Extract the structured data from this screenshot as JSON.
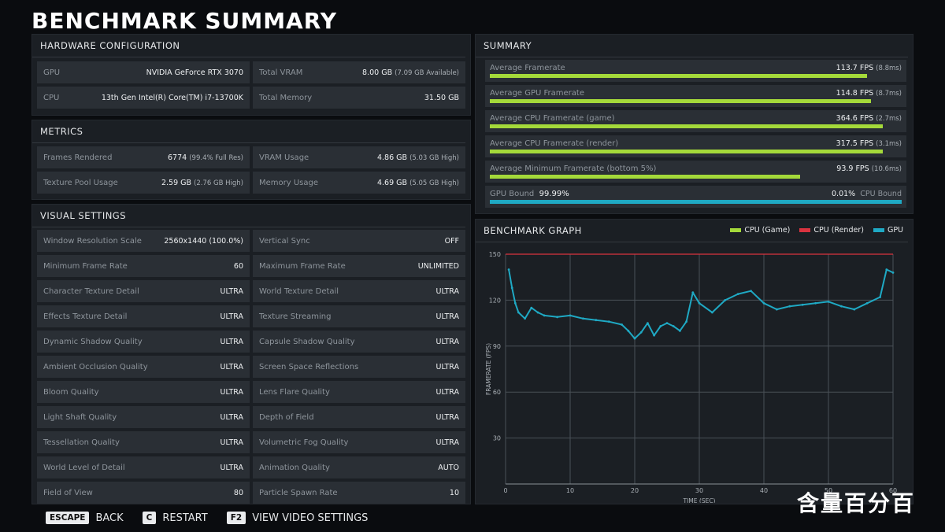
{
  "page_title": "BENCHMARK SUMMARY",
  "hardware": {
    "heading": "HARDWARE CONFIGURATION",
    "items": [
      {
        "label": "GPU",
        "value": "NVIDIA GeForce RTX 3070",
        "note": ""
      },
      {
        "label": "Total VRAM",
        "value": "8.00 GB",
        "note": "(7.09 GB Available)"
      },
      {
        "label": "CPU",
        "value": "13th Gen Intel(R) Core(TM) i7-13700K",
        "note": ""
      },
      {
        "label": "Total Memory",
        "value": "31.50 GB",
        "note": ""
      }
    ]
  },
  "metrics": {
    "heading": "METRICS",
    "items": [
      {
        "label": "Frames Rendered",
        "value": "6774",
        "note": "(99.4% Full Res)"
      },
      {
        "label": "VRAM Usage",
        "value": "4.86 GB",
        "note": "(5.03 GB High)"
      },
      {
        "label": "Texture Pool Usage",
        "value": "2.59 GB",
        "note": "(2.76 GB High)"
      },
      {
        "label": "Memory Usage",
        "value": "4.69 GB",
        "note": "(5.05 GB High)"
      }
    ]
  },
  "visual": {
    "heading": "VISUAL SETTINGS",
    "items": [
      {
        "label": "Window Resolution Scale",
        "value": "2560x1440 (100.0%)"
      },
      {
        "label": "Vertical Sync",
        "value": "OFF"
      },
      {
        "label": "Minimum Frame Rate",
        "value": "60"
      },
      {
        "label": "Maximum Frame Rate",
        "value": "UNLIMITED"
      },
      {
        "label": "Character Texture Detail",
        "value": "ULTRA"
      },
      {
        "label": "World Texture Detail",
        "value": "ULTRA"
      },
      {
        "label": "Effects Texture Detail",
        "value": "ULTRA"
      },
      {
        "label": "Texture Streaming",
        "value": "ULTRA"
      },
      {
        "label": "Dynamic Shadow Quality",
        "value": "ULTRA"
      },
      {
        "label": "Capsule Shadow Quality",
        "value": "ULTRA"
      },
      {
        "label": "Ambient Occlusion Quality",
        "value": "ULTRA"
      },
      {
        "label": "Screen Space Reflections",
        "value": "ULTRA"
      },
      {
        "label": "Bloom Quality",
        "value": "ULTRA"
      },
      {
        "label": "Lens Flare Quality",
        "value": "ULTRA"
      },
      {
        "label": "Light Shaft Quality",
        "value": "ULTRA"
      },
      {
        "label": "Depth of Field",
        "value": "ULTRA"
      },
      {
        "label": "Tessellation Quality",
        "value": "ULTRA"
      },
      {
        "label": "Volumetric Fog Quality",
        "value": "ULTRA"
      },
      {
        "label": "World Level of Detail",
        "value": "ULTRA"
      },
      {
        "label": "Animation Quality",
        "value": "AUTO"
      },
      {
        "label": "Field of View",
        "value": "80"
      },
      {
        "label": "Particle Spawn Rate",
        "value": "10"
      }
    ]
  },
  "summary": {
    "heading": "SUMMARY",
    "rows": [
      {
        "label": "Average Framerate",
        "value": "113.7 FPS",
        "note": "(8.8ms)",
        "fill": 0.96
      },
      {
        "label": "Average GPU Framerate",
        "value": "114.8 FPS",
        "note": "(8.7ms)",
        "fill": 0.97
      },
      {
        "label": "Average CPU Framerate (game)",
        "value": "364.6 FPS",
        "note": "(2.7ms)",
        "fill": 1.0
      },
      {
        "label": "Average CPU Framerate (render)",
        "value": "317.5 FPS",
        "note": "(3.1ms)",
        "fill": 1.0
      },
      {
        "label": "Average Minimum Framerate (bottom 5%)",
        "value": "93.9 FPS",
        "note": "(10.6ms)",
        "fill": 0.79
      }
    ],
    "bound": {
      "gpu_label": "GPU Bound",
      "gpu_value": "99.99%",
      "cpu_value": "0.01%",
      "cpu_label": "CPU Bound",
      "gpu_fraction": 0.9999
    }
  },
  "graph": {
    "heading": "BENCHMARK GRAPH",
    "legend": [
      {
        "name": "CPU (Game)",
        "color": "#a4d93a"
      },
      {
        "name": "CPU (Render)",
        "color": "#d9333f"
      },
      {
        "name": "GPU",
        "color": "#1fa9c4"
      }
    ]
  },
  "chart_data": {
    "type": "line",
    "xlabel": "TIME (SEC)",
    "ylabel": "FRAMERATE (FPS)",
    "xlim": [
      0,
      60
    ],
    "ylim": [
      0,
      150
    ],
    "xticks": [
      0,
      10,
      20,
      30,
      40,
      50,
      60
    ],
    "yticks": [
      30,
      60,
      90,
      120,
      150
    ],
    "grid": true,
    "legend": "top-right",
    "series": [
      {
        "name": "CPU (Render)",
        "color": "#d9333f",
        "x": [
          0,
          60
        ],
        "y": [
          150,
          150
        ]
      },
      {
        "name": "GPU",
        "color": "#1fa9c4",
        "x": [
          0.5,
          1,
          1.5,
          2,
          3,
          4,
          5,
          6,
          8,
          10,
          12,
          14,
          16,
          18,
          19,
          20,
          21,
          22,
          23,
          24,
          25,
          26,
          27,
          28,
          29,
          30,
          32,
          34,
          36,
          38,
          40,
          42,
          44,
          46,
          48,
          50,
          52,
          54,
          56,
          58,
          59,
          60
        ],
        "y": [
          140,
          128,
          118,
          112,
          108,
          115,
          112,
          110,
          109,
          110,
          108,
          107,
          106,
          104,
          100,
          95,
          99,
          105,
          97,
          103,
          105,
          103,
          100,
          106,
          125,
          118,
          112,
          120,
          124,
          126,
          118,
          114,
          116,
          117,
          118,
          119,
          116,
          114,
          118,
          122,
          140,
          138
        ]
      }
    ]
  },
  "footer": [
    {
      "key": "ESCAPE",
      "label": "BACK"
    },
    {
      "key": "C",
      "label": "RESTART"
    },
    {
      "key": "F2",
      "label": "VIEW VIDEO SETTINGS"
    }
  ],
  "watermark": "含量百分百"
}
